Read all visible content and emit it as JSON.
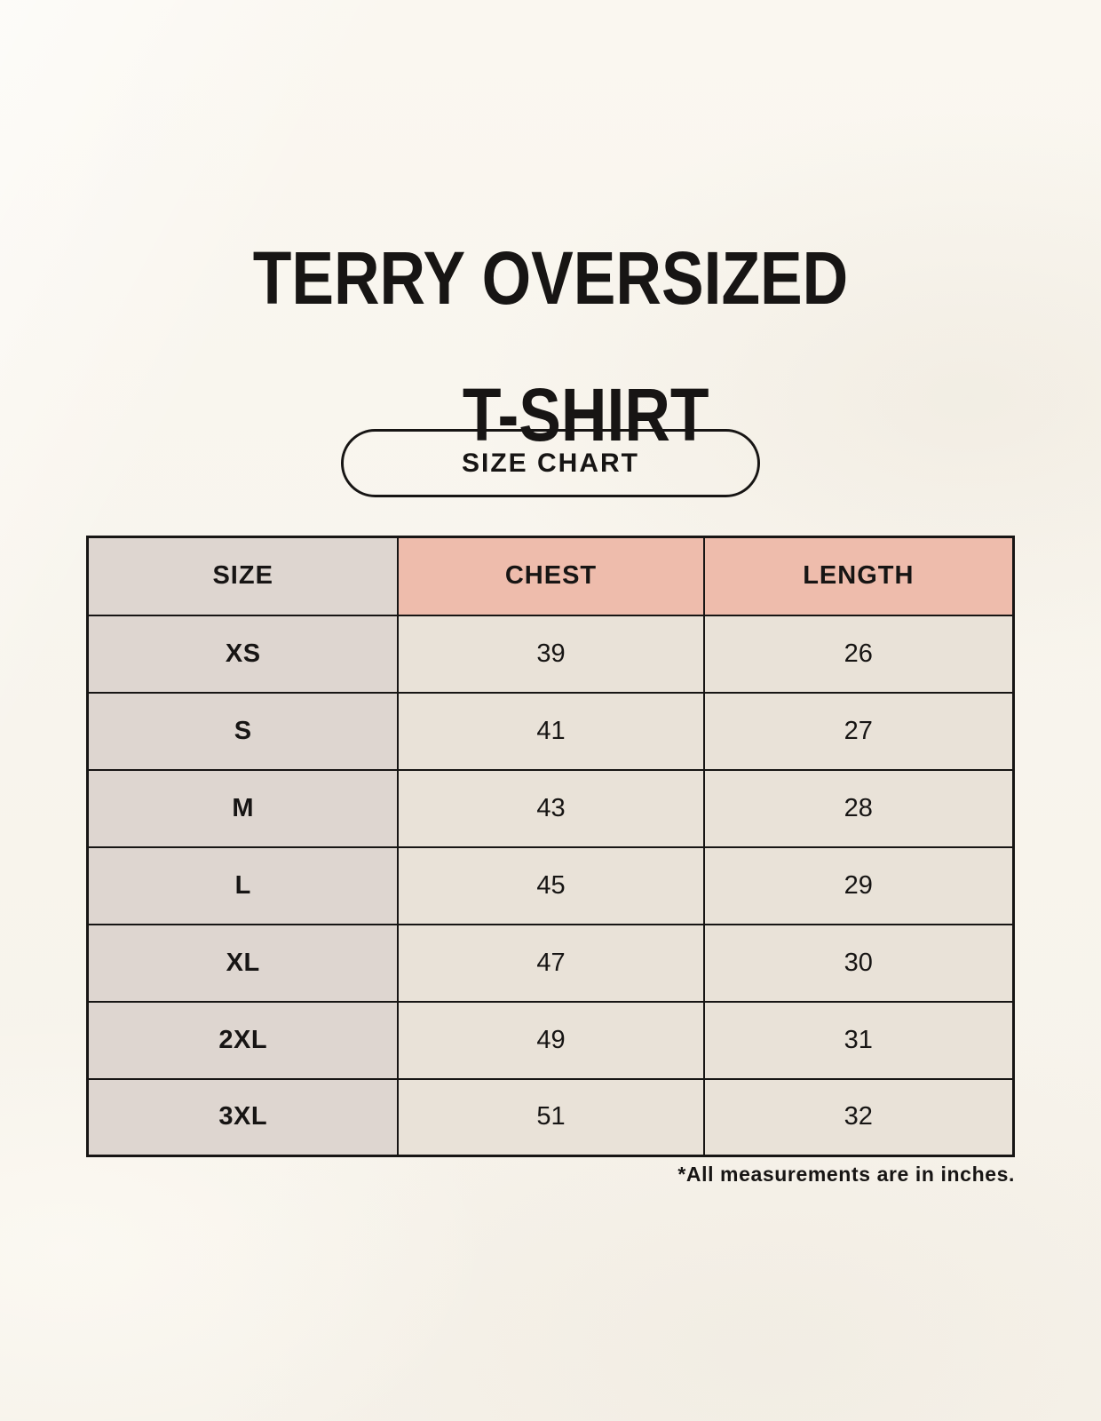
{
  "page": {
    "title_lines": [
      "TERRY OVERSIZED",
      "T-SHIRT"
    ],
    "badge_label": "SIZE CHART",
    "footnote": "*All measurements are in inches."
  },
  "colors": {
    "background": "#f8f5ee",
    "header_accent": "#eebcac",
    "size_column": "#ded6d0",
    "data_cell": "#e9e2d8",
    "text": "#171514"
  },
  "chart_data": {
    "type": "table",
    "title": "TERRY OVERSIZED T-SHIRT",
    "columns": [
      "SIZE",
      "CHEST",
      "LENGTH"
    ],
    "rows": [
      [
        "XS",
        39,
        26
      ],
      [
        "S",
        41,
        27
      ],
      [
        "M",
        43,
        28
      ],
      [
        "L",
        45,
        29
      ],
      [
        "XL",
        47,
        30
      ],
      [
        "2XL",
        49,
        31
      ],
      [
        "3XL",
        51,
        32
      ]
    ],
    "units": "inches",
    "note": "*All measurements are in inches."
  }
}
